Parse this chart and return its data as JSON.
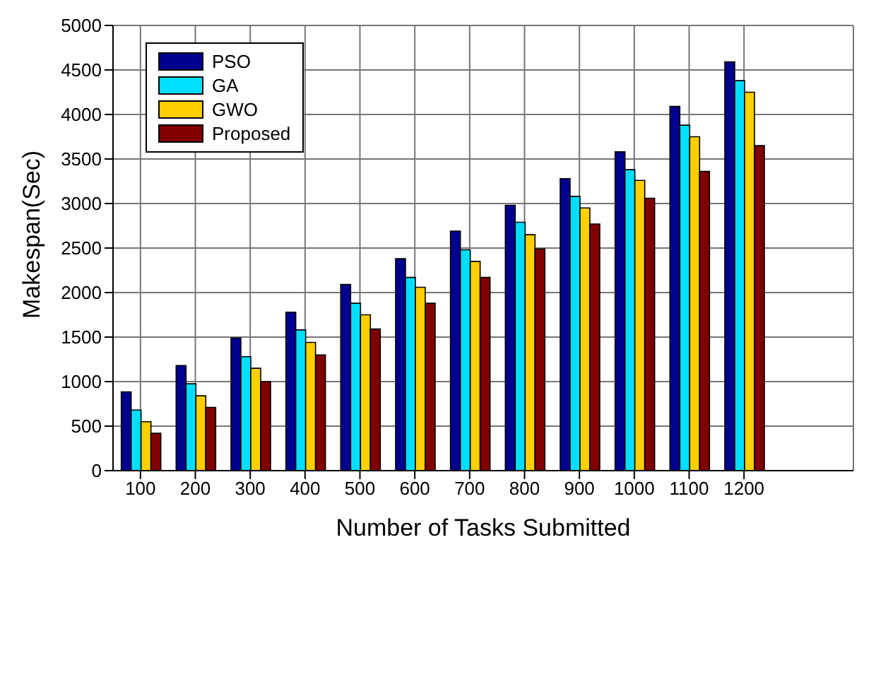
{
  "chart_data": {
    "type": "bar",
    "xlabel": "Number of Tasks Submitted",
    "ylabel": "Makespan(Sec)",
    "categories": [
      "100",
      "200",
      "300",
      "400",
      "500",
      "600",
      "700",
      "800",
      "900",
      "1000",
      "1100",
      "1200"
    ],
    "series": [
      {
        "name": "PSO",
        "color": "#00008f",
        "values": [
          885,
          1180,
          1490,
          1780,
          2090,
          2380,
          2690,
          2980,
          3280,
          3580,
          4090,
          4590
        ]
      },
      {
        "name": "GA",
        "color": "#00dfff",
        "values": [
          680,
          975,
          1280,
          1580,
          1880,
          2170,
          2480,
          2790,
          3080,
          3380,
          3880,
          4380
        ]
      },
      {
        "name": "GWO",
        "color": "#ffcf00",
        "values": [
          550,
          840,
          1150,
          1440,
          1750,
          2060,
          2350,
          2650,
          2950,
          3260,
          3750,
          4250
        ]
      },
      {
        "name": "Proposed",
        "color": "#800000",
        "values": [
          420,
          710,
          1000,
          1300,
          1590,
          1880,
          2170,
          2490,
          2770,
          3060,
          3360,
          3650
        ]
      }
    ],
    "ylim": [
      0,
      5000
    ],
    "yticks": [
      0,
      500,
      1000,
      1500,
      2000,
      2500,
      3000,
      3500,
      4000,
      4500,
      5000
    ],
    "grid": true,
    "legend": "top left"
  }
}
